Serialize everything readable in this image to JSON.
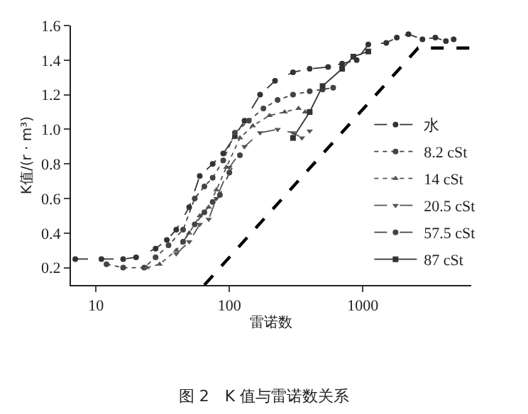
{
  "chart_data": {
    "type": "line",
    "title": "图 2　K 值与雷诺数关系",
    "xlabel": "雷诺数",
    "ylabel": "K值/(r · m³)",
    "log": "x",
    "grid": false,
    "legend": "bottom right",
    "xlim": [
      6.5,
      6500
    ],
    "xticks": [
      10,
      100,
      1000
    ],
    "ylim": [
      0.1,
      1.6
    ],
    "yticks": [
      0.2,
      0.4,
      0.6,
      0.8,
      {
        "value": 1,
        "label": "1.0"
      },
      1.2,
      1.4,
      1.6
    ],
    "series": [
      {
        "name": "水",
        "color": "#333333",
        "marker": "circle",
        "line_style": "dashed",
        "x": [
          7,
          11,
          16,
          20,
          28,
          34,
          40,
          50,
          60,
          75,
          90,
          110,
          130,
          170,
          220,
          300,
          400,
          550,
          700,
          900,
          1100,
          1500,
          1800,
          2200,
          2800,
          3500,
          4200,
          4800
        ],
        "values": [
          0.25,
          0.25,
          0.25,
          0.26,
          0.31,
          0.36,
          0.42,
          0.55,
          0.73,
          0.8,
          0.86,
          0.96,
          1.05,
          1.2,
          1.28,
          1.33,
          1.35,
          1.36,
          1.38,
          1.4,
          1.49,
          1.5,
          1.53,
          1.55,
          1.52,
          1.53,
          1.51,
          1.52
        ]
      },
      {
        "name": "8.2 cSt",
        "color": "#444444",
        "marker": "circle",
        "line_style": "dotted",
        "x": [
          12,
          16,
          23,
          28,
          35,
          45,
          55,
          65,
          75,
          90,
          110,
          140,
          180,
          230,
          300,
          400,
          500,
          600
        ],
        "values": [
          0.22,
          0.2,
          0.2,
          0.26,
          0.33,
          0.42,
          0.6,
          0.67,
          0.72,
          0.82,
          0.98,
          1.05,
          1.12,
          1.17,
          1.2,
          1.22,
          1.23,
          1.24
        ]
      },
      {
        "name": "14 cSt",
        "color": "#555555",
        "marker": "triangle",
        "line_style": "dotted",
        "x": [
          24,
          30,
          40,
          50,
          60,
          70,
          80,
          95,
          120,
          150,
          200,
          260,
          330,
          370
        ],
        "values": [
          0.2,
          0.22,
          0.3,
          0.4,
          0.5,
          0.55,
          0.65,
          0.78,
          0.95,
          1.02,
          1.08,
          1.1,
          1.12,
          1.1
        ]
      },
      {
        "name": "20.5 cSt",
        "color": "#555555",
        "marker": "triangle-down",
        "line_style": "dashed",
        "x": [
          40,
          50,
          60,
          70,
          80,
          100,
          130,
          170,
          230,
          300,
          350,
          400
        ],
        "values": [
          0.28,
          0.35,
          0.45,
          0.48,
          0.6,
          0.78,
          0.9,
          0.98,
          1.0,
          0.98,
          0.95,
          0.99
        ]
      },
      {
        "name": "57.5 cSt",
        "color": "#444444",
        "marker": "circle",
        "line_style": "dashed",
        "x": [
          45,
          55,
          65,
          75,
          85,
          100,
          120
        ],
        "values": [
          0.35,
          0.45,
          0.52,
          0.58,
          0.62,
          0.75,
          0.85
        ]
      },
      {
        "name": "87 cSt",
        "color": "#333333",
        "marker": "square",
        "line_style": "solid",
        "x": [
          300,
          400,
          500,
          700,
          850,
          1100
        ],
        "values": [
          0.95,
          1.1,
          1.25,
          1.35,
          1.42,
          1.45
        ]
      },
      {
        "color": "#000000",
        "marker": "none",
        "line_style": "dashed",
        "x": [
          65,
          2600,
          6500
        ],
        "values": [
          0.1,
          1.47,
          1.47
        ]
      }
    ]
  }
}
